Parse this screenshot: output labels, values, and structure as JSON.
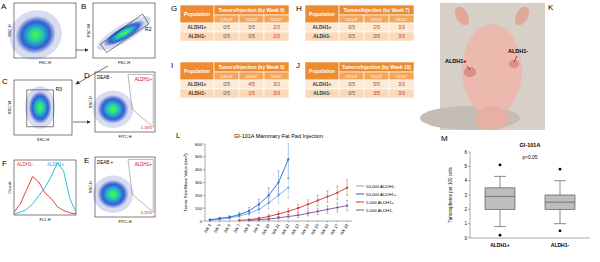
{
  "panel_letters": [
    "A",
    "B",
    "C",
    "D",
    "E",
    "F",
    "G",
    "H",
    "I",
    "J",
    "K",
    "L",
    "M"
  ],
  "flow_panels": {
    "A": {
      "x_label": "FSC-H",
      "y_label": "SSC-H"
    },
    "B": {
      "x_label": "FSC-H",
      "y_label": "FSC-W",
      "gate": "R2"
    },
    "C": {
      "x_label": "SSC-H",
      "y_label": "SSC-W",
      "gate": "R3"
    },
    "D": {
      "x_label": "FITC-H",
      "y_label": "SSC-H",
      "condition": "DEAB -",
      "gate": "ALDH1+",
      "percent": "1.16%"
    },
    "E": {
      "x_label": "FITC-H",
      "y_label": "SSC-H",
      "condition": "DEAB +",
      "gate": "ALDH1+",
      "percent": "0.15%"
    }
  },
  "tables": [
    {
      "header": [
        "Population",
        "Tumors/Injection (by Week 6)"
      ],
      "columns": [
        "5X10²",
        "5X10³",
        "5X10⁴"
      ],
      "rows": [
        [
          "ALDH1+",
          "0/5",
          "0/5",
          "2/3"
        ],
        [
          "ALDH1-",
          "0/5",
          "0/5",
          "2/3"
        ]
      ]
    },
    {
      "header": [
        "Population",
        "Tumors/Injection (by Week 7)"
      ],
      "columns": [
        "5X10²",
        "5X10³",
        "5X10⁴"
      ],
      "rows": [
        [
          "ALDH1+",
          "0/5",
          "2/5",
          "3/3"
        ],
        [
          "ALDH1-",
          "0/5",
          "0/5",
          "3/3"
        ]
      ]
    },
    {
      "header": [
        "Population",
        "Tumors/Injection (by Week 8)"
      ],
      "columns": [
        "5X10²",
        "5X10³",
        "5X10⁴"
      ],
      "rows": [
        [
          "ALDH1+",
          "0/5",
          "4/5",
          "3/3"
        ],
        [
          "ALDH1-",
          "0/5",
          "1/5",
          "3/3"
        ]
      ]
    },
    {
      "header": [
        "Population",
        "Tumors/Injection (by Week 10)"
      ],
      "columns": [
        "5X10²",
        "5X10³",
        "5X10⁴"
      ],
      "rows": [
        [
          "ALDH1+",
          "0/5",
          "5/5",
          "3/3"
        ],
        [
          "ALDH1-",
          "0/5",
          "3/5",
          "3/3"
        ]
      ]
    }
  ],
  "photo": {
    "labels": [
      "ALDH1+",
      "ALDH1-"
    ]
  },
  "chart_data": [
    {
      "type": "line",
      "x_label": "FL1-H",
      "y_label": "Counts",
      "x": [
        0,
        1,
        2,
        3,
        4,
        5,
        6,
        7,
        8,
        9,
        10
      ],
      "xlim": [
        0,
        10
      ],
      "ylim": [
        0,
        100
      ],
      "tick_labels": false,
      "legend": "top",
      "series": [
        {
          "name": "ALDH1-",
          "color": "#d9302b",
          "values": [
            5,
            20,
            45,
            70,
            60,
            40,
            30,
            15,
            8,
            4,
            2
          ]
        },
        {
          "name": "ALDH1+",
          "color": "#19b5d8",
          "values": [
            2,
            5,
            10,
            20,
            35,
            50,
            70,
            95,
            80,
            30,
            5
          ]
        }
      ]
    },
    {
      "type": "line",
      "title": "GI-101A Mammary Fat Pad Injection",
      "y_label": "Tumor Size Mean Value (mm³)",
      "categories": [
        "Wk 4",
        "Wk 5",
        "Wk 6",
        "Wk 7",
        "Wk 8",
        "Wk 9",
        "Wk 10",
        "Wk 11",
        "Wk 12",
        "Wk 13",
        "Wk 14",
        "Wk 15",
        "Wk 16",
        "Wk 17",
        "Wk 18"
      ],
      "ylim": [
        0,
        600
      ],
      "yticks": [
        0,
        100,
        200,
        300,
        400,
        500,
        600
      ],
      "grid": false,
      "legend": "right",
      "marker": "circle",
      "series": [
        {
          "name": "50,000 ALDH1-",
          "color": "#6fa8dc",
          "values": [
            5,
            15,
            25,
            40,
            60,
            90,
            140,
            200,
            260,
            null,
            null,
            null,
            null,
            null,
            null
          ],
          "errors": [
            3,
            6,
            10,
            15,
            20,
            30,
            45,
            60,
            80,
            null,
            null,
            null,
            null,
            null,
            null
          ]
        },
        {
          "name": "50,000 ALDH1+",
          "color": "#2a62c9",
          "values": [
            10,
            20,
            30,
            50,
            80,
            130,
            200,
            300,
            480,
            null,
            null,
            null,
            null,
            null,
            null
          ],
          "errors": [
            5,
            8,
            12,
            18,
            25,
            40,
            60,
            90,
            150,
            null,
            null,
            null,
            null,
            null,
            null
          ]
        },
        {
          "name": "5,000 ALDH1+",
          "color": "#c0392b",
          "values": [
            null,
            null,
            null,
            5,
            10,
            20,
            35,
            55,
            75,
            100,
            130,
            160,
            190,
            220,
            260
          ],
          "errors": [
            null,
            null,
            null,
            3,
            5,
            10,
            15,
            20,
            25,
            30,
            35,
            40,
            45,
            50,
            60
          ]
        },
        {
          "name": "5,000 ALDH1-",
          "color": "#7b4fa0",
          "values": [
            null,
            null,
            null,
            null,
            5,
            10,
            15,
            25,
            35,
            45,
            60,
            75,
            90,
            105,
            120
          ],
          "errors": [
            null,
            null,
            null,
            null,
            3,
            5,
            8,
            10,
            15,
            18,
            20,
            25,
            30,
            35,
            40
          ]
        }
      ]
    },
    {
      "type": "box",
      "title": "GI-101A",
      "y_label": "Tumorspheres per 100 cells",
      "categories": [
        "ALDH1+",
        "ALDH1-"
      ],
      "color": "#bdbdbd",
      "ylim": [
        0,
        6
      ],
      "yticks": [
        0,
        1,
        2,
        3,
        4,
        5,
        6
      ],
      "annotation": "p<0.05",
      "boxes": [
        {
          "min": 0.8,
          "q1": 2.0,
          "median": 2.9,
          "q3": 3.5,
          "max": 4.3,
          "outliers": [
            0.2,
            5.1
          ]
        },
        {
          "min": 1.0,
          "q1": 2.0,
          "median": 2.5,
          "q3": 3.0,
          "max": 4.0,
          "outliers": [
            0.5,
            4.8
          ]
        }
      ]
    }
  ]
}
